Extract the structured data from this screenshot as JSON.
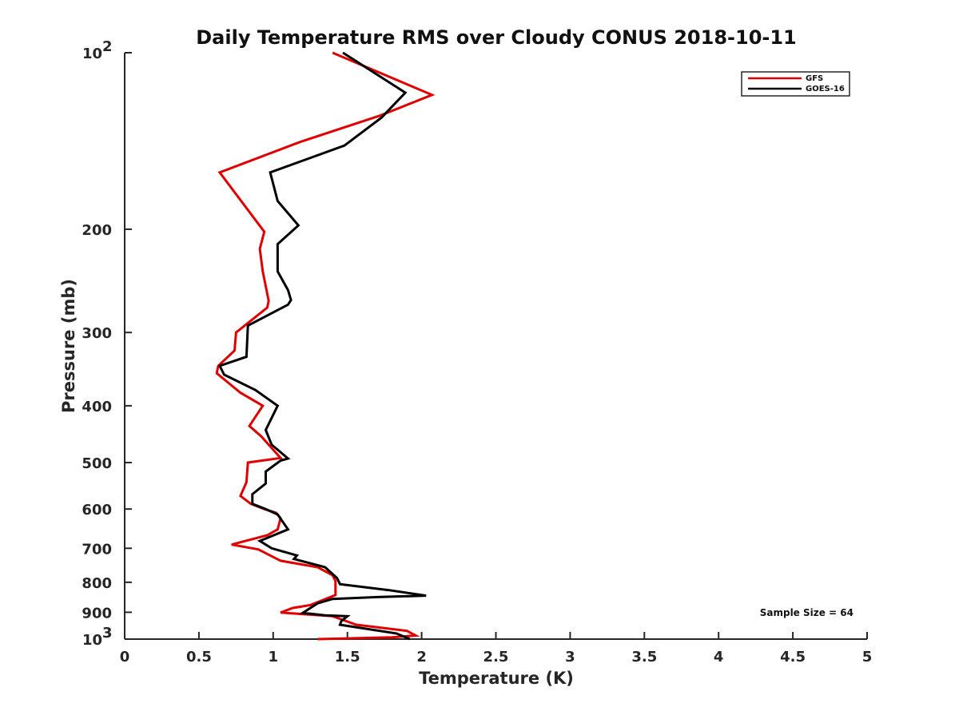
{
  "chart_data": {
    "type": "line",
    "title": "Daily Temperature RMS over Cloudy CONUS 2018-10-11",
    "xlabel": "Temperature (K)",
    "ylabel": "Pressure (mb)",
    "xlim": [
      0,
      5
    ],
    "ylim": [
      100,
      1000
    ],
    "y_scale": "log",
    "y_reversed": true,
    "grid": false,
    "legend_position": "top-right",
    "x_ticks": [
      {
        "value": 0,
        "label": "0"
      },
      {
        "value": 0.5,
        "label": "0.5"
      },
      {
        "value": 1,
        "label": "1"
      },
      {
        "value": 1.5,
        "label": "1.5"
      },
      {
        "value": 2,
        "label": "2"
      },
      {
        "value": 2.5,
        "label": "2.5"
      },
      {
        "value": 3,
        "label": "3"
      },
      {
        "value": 3.5,
        "label": "3.5"
      },
      {
        "value": 4,
        "label": "4"
      },
      {
        "value": 4.5,
        "label": "4.5"
      },
      {
        "value": 5,
        "label": "5"
      }
    ],
    "y_ticks": [
      {
        "value": 100,
        "label": "10",
        "exp": "2"
      },
      {
        "value": 200,
        "label": "200"
      },
      {
        "value": 300,
        "label": "300"
      },
      {
        "value": 400,
        "label": "400"
      },
      {
        "value": 500,
        "label": "500"
      },
      {
        "value": 600,
        "label": "600"
      },
      {
        "value": 700,
        "label": "700"
      },
      {
        "value": 800,
        "label": "800"
      },
      {
        "value": 900,
        "label": "900"
      },
      {
        "value": 1000,
        "label": "10",
        "exp": "3"
      }
    ],
    "annotation": "Sample Size = 64",
    "series": [
      {
        "name": "GFS",
        "color": "#e00000",
        "points": [
          [
            1.4,
            100
          ],
          [
            2.07,
            118
          ],
          [
            1.72,
            128
          ],
          [
            1.18,
            142
          ],
          [
            0.64,
            160
          ],
          [
            0.94,
            202
          ],
          [
            0.91,
            216
          ],
          [
            0.93,
            236
          ],
          [
            0.97,
            265
          ],
          [
            0.96,
            272
          ],
          [
            0.75,
            300
          ],
          [
            0.74,
            322
          ],
          [
            0.63,
            342
          ],
          [
            0.62,
            352
          ],
          [
            0.78,
            380
          ],
          [
            0.93,
            400
          ],
          [
            0.84,
            433
          ],
          [
            0.92,
            451
          ],
          [
            0.97,
            466
          ],
          [
            1.05,
            491
          ],
          [
            0.83,
            500
          ],
          [
            0.82,
            540
          ],
          [
            0.78,
            570
          ],
          [
            0.85,
            588
          ],
          [
            0.94,
            600
          ],
          [
            1.02,
            609
          ],
          [
            1.05,
            622
          ],
          [
            1.03,
            650
          ],
          [
            0.96,
            665
          ],
          [
            0.72,
            690
          ],
          [
            0.9,
            703
          ],
          [
            1.05,
            735
          ],
          [
            1.3,
            754
          ],
          [
            1.4,
            778
          ],
          [
            1.42,
            796
          ],
          [
            1.42,
            841
          ],
          [
            1.25,
            875
          ],
          [
            1.13,
            885
          ],
          [
            1.05,
            901
          ],
          [
            1.4,
            914
          ],
          [
            1.56,
            945
          ],
          [
            1.9,
            968
          ],
          [
            1.96,
            986
          ],
          [
            1.8,
            993
          ],
          [
            1.3,
            1000
          ]
        ]
      },
      {
        "name": "GOES-16",
        "color": "#000000",
        "points": [
          [
            1.47,
            100
          ],
          [
            1.89,
            117
          ],
          [
            1.73,
            129
          ],
          [
            1.48,
            144
          ],
          [
            0.98,
            160
          ],
          [
            1.03,
            179
          ],
          [
            1.17,
            197
          ],
          [
            1.03,
            212
          ],
          [
            1.03,
            236
          ],
          [
            1.1,
            254
          ],
          [
            1.12,
            264
          ],
          [
            1.1,
            269
          ],
          [
            0.83,
            292
          ],
          [
            0.82,
            330
          ],
          [
            0.64,
            342
          ],
          [
            0.67,
            354
          ],
          [
            0.88,
            376
          ],
          [
            1.03,
            400
          ],
          [
            0.95,
            440
          ],
          [
            0.99,
            466
          ],
          [
            1.1,
            492
          ],
          [
            1.05,
            496
          ],
          [
            0.95,
            518
          ],
          [
            0.95,
            543
          ],
          [
            0.86,
            566
          ],
          [
            0.86,
            588
          ],
          [
            0.95,
            600
          ],
          [
            1.03,
            613
          ],
          [
            1.1,
            650
          ],
          [
            0.91,
            680
          ],
          [
            0.99,
            700
          ],
          [
            1.16,
            720
          ],
          [
            1.14,
            730
          ],
          [
            1.35,
            754
          ],
          [
            1.43,
            787
          ],
          [
            1.45,
            806
          ],
          [
            1.78,
            825
          ],
          [
            2.03,
            843
          ],
          [
            1.7,
            848
          ],
          [
            1.4,
            854
          ],
          [
            1.3,
            869
          ],
          [
            1.2,
            902
          ],
          [
            1.35,
            911
          ],
          [
            1.5,
            914
          ],
          [
            1.46,
            931
          ],
          [
            1.45,
            945
          ],
          [
            1.83,
            978
          ],
          [
            1.92,
            1000
          ]
        ]
      }
    ]
  }
}
